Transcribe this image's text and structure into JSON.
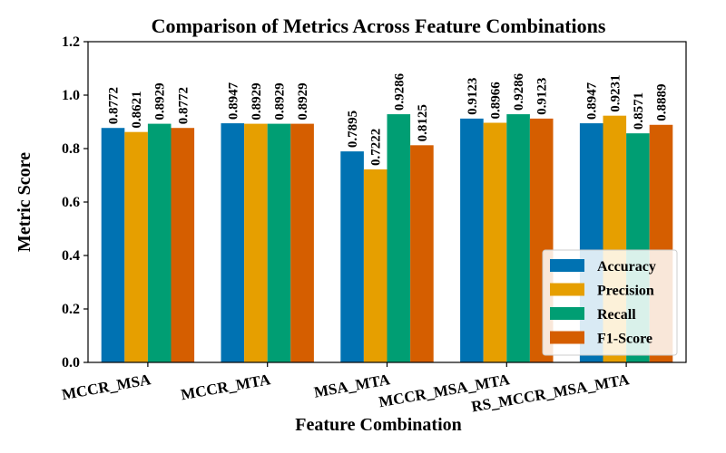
{
  "chart_data": {
    "type": "bar",
    "title": "Comparison of Metrics Across Feature Combinations",
    "xlabel": "Feature Combination",
    "ylabel": "Metric Score",
    "ylim": [
      0,
      1.2
    ],
    "yticks": [
      "0.0",
      "0.2",
      "0.4",
      "0.6",
      "0.8",
      "1.0",
      "1.2"
    ],
    "grid": false,
    "legend_position": "bottom-right",
    "categories": [
      "MCCR_MSA",
      "MCCR_MTA",
      "MSA_MTA",
      "MCCR_MSA_MTA",
      "RS_MCCR_MSA_MTA"
    ],
    "series": [
      {
        "name": "Accuracy",
        "color": "#0072B2",
        "values": [
          0.8772,
          0.8947,
          0.7895,
          0.9123,
          0.8947
        ],
        "labels": [
          "0.8772",
          "0.8947",
          "0.7895",
          "0.9123",
          "0.8947"
        ]
      },
      {
        "name": "Precision",
        "color": "#E69F00",
        "values": [
          0.8621,
          0.8929,
          0.7222,
          0.8966,
          0.9231
        ],
        "labels": [
          "0.8621",
          "0.8929",
          "0.7222",
          "0.8966",
          "0.9231"
        ]
      },
      {
        "name": "Recall",
        "color": "#009E73",
        "values": [
          0.8929,
          0.8929,
          0.9286,
          0.9286,
          0.8571
        ],
        "labels": [
          "0.8929",
          "0.8929",
          "0.9286",
          "0.9286",
          "0.8571"
        ]
      },
      {
        "name": "F1-Score",
        "color": "#D55E00",
        "values": [
          0.8772,
          0.8929,
          0.8125,
          0.9123,
          0.8889
        ],
        "labels": [
          "0.8772",
          "0.8929",
          "0.8125",
          "0.9123",
          "0.8889"
        ]
      }
    ]
  }
}
